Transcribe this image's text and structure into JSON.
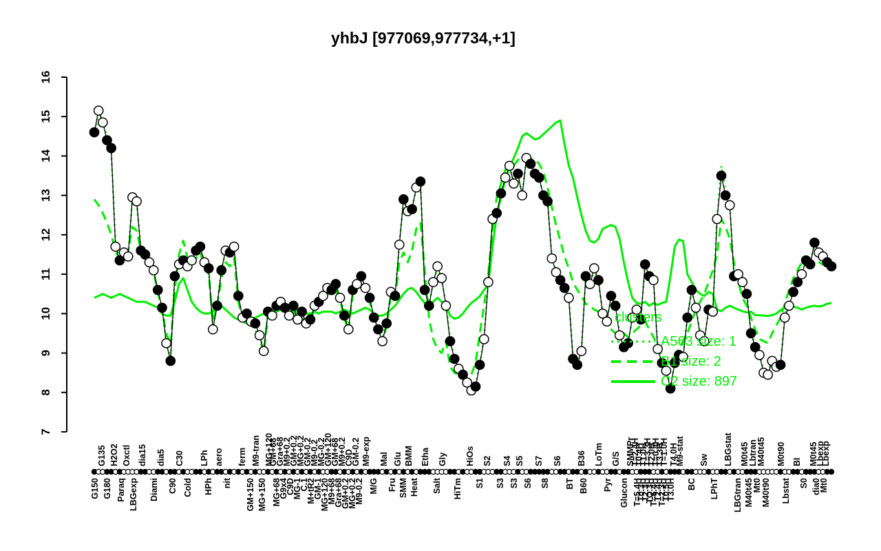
{
  "title": "yhbJ [977069,977734,+1]",
  "colors": {
    "series_green": "#00EE00",
    "series_black": "#000000",
    "background": "#FFFFFF"
  },
  "legend": {
    "title": "clusters",
    "entries": [
      {
        "label": "A563 size: 1",
        "style": "dotted"
      },
      {
        "label": "B1 size: 2",
        "style": "dashed"
      },
      {
        "label": "C2 size: 897",
        "style": "solid"
      }
    ]
  },
  "axis": {
    "y_ticks": [
      7,
      8,
      9,
      10,
      11,
      12,
      13,
      14,
      15,
      16
    ],
    "y_range": [
      7,
      16
    ]
  },
  "chart_data": {
    "type": "line",
    "title": "yhbJ [977069,977734,+1]",
    "ylabel": "",
    "xlabel": "",
    "ylim": [
      7,
      16
    ],
    "grid": false,
    "legend_position": "right-middle",
    "series": [
      {
        "name": "yhbJ",
        "color": "#000000",
        "style": "solid-points",
        "markers": "1001101000011001101101001101011010101010010101010101010011010101011101010101011100001101001100011000100111110011011010010011011001110010111011000100110100111000001001101110011001110110010",
        "values": [
          14.6,
          15.15,
          14.85,
          14.4,
          14.2,
          11.7,
          11.35,
          11.55,
          11.45,
          12.95,
          12.85,
          11.6,
          11.5,
          11.3,
          11.1,
          10.6,
          10.15,
          9.25,
          8.8,
          10.95,
          11.25,
          11.35,
          11.2,
          11.35,
          11.6,
          11.7,
          11.3,
          11.15,
          9.6,
          10.2,
          11.1,
          11.6,
          11.55,
          11.7,
          10.45,
          9.9,
          10.0,
          9.8,
          9.75,
          9.45,
          9.05,
          10.05,
          9.95,
          10.2,
          10.3,
          10.15,
          9.95,
          10.2,
          9.85,
          10.05,
          9.75,
          9.85,
          10.2,
          10.3,
          10.45,
          10.65,
          10.6,
          10.75,
          10.4,
          9.95,
          9.6,
          10.6,
          10.75,
          10.95,
          10.65,
          10.4,
          9.9,
          9.6,
          9.3,
          9.75,
          10.55,
          10.45,
          11.75,
          12.9,
          12.6,
          12.65,
          13.2,
          13.35,
          10.6,
          10.2,
          10.8,
          11.2,
          10.9,
          10.2,
          9.3,
          8.85,
          8.6,
          8.45,
          8.25,
          8.05,
          8.15,
          8.7,
          9.35,
          10.8,
          12.4,
          12.55,
          13.05,
          13.45,
          13.75,
          13.3,
          13.55,
          13.0,
          13.95,
          13.8,
          13.55,
          13.45,
          13.0,
          12.85,
          11.4,
          11.05,
          10.85,
          10.65,
          10.4,
          8.85,
          8.7,
          9.05,
          10.95,
          10.75,
          11.15,
          10.85,
          10.0,
          9.8,
          10.45,
          10.2,
          9.45,
          9.15,
          9.25,
          9.9,
          10.1,
          9.85,
          11.25,
          10.95,
          10.85,
          9.1,
          8.75,
          8.55,
          8.1,
          8.75,
          8.95,
          8.9,
          9.9,
          10.6,
          10.15,
          9.45,
          9.3,
          10.1,
          10.05,
          12.4,
          13.5,
          13.0,
          12.75,
          10.95,
          11.0,
          10.8,
          10.5,
          9.5,
          9.15,
          8.95,
          8.5,
          8.45,
          8.8,
          8.65,
          8.7,
          9.9,
          10.2,
          10.55,
          10.8,
          11.0,
          11.35,
          11.25,
          11.8,
          11.55,
          11.45,
          11.3,
          11.2
        ]
      },
      {
        "name": "A563",
        "color": "#00EE00",
        "style": "dotted",
        "values": [
          14.5,
          15.1,
          14.9,
          14.5,
          14.1,
          11.8,
          11.4,
          11.6,
          11.5,
          12.9,
          12.8,
          11.65,
          11.45,
          11.25,
          11.05,
          10.5,
          10.1,
          9.3,
          8.9,
          11.0,
          11.3,
          11.3,
          11.25,
          11.4,
          11.65,
          11.6,
          11.35,
          11.1,
          9.7,
          10.25,
          11.15,
          11.55,
          11.5,
          11.65,
          10.4,
          9.95,
          10.05,
          9.85,
          9.7,
          9.4,
          9.1,
          10.1,
          10.0,
          10.25,
          10.25,
          10.1,
          10.0,
          10.15,
          9.9,
          10.0,
          9.8,
          9.9,
          10.15,
          10.25,
          10.4,
          10.6,
          10.65,
          10.7,
          10.45,
          10.0,
          9.65,
          10.55,
          10.7,
          10.9,
          10.7,
          10.35,
          9.95,
          9.65,
          9.35,
          9.8,
          10.5,
          10.4,
          11.8,
          12.85,
          12.65,
          12.7,
          13.15,
          13.3,
          10.65,
          10.25,
          10.75,
          11.15,
          10.85,
          10.25,
          9.35,
          8.9,
          8.65,
          8.5,
          8.3,
          8.1,
          8.2,
          8.75,
          9.4,
          10.85,
          12.35,
          12.5,
          13.0,
          13.4,
          13.7,
          13.35,
          13.5,
          13.05,
          13.9,
          13.75,
          13.5,
          13.4,
          13.05,
          12.8,
          11.45,
          11.1,
          10.9,
          10.7,
          10.45,
          8.9,
          8.75,
          9.1,
          10.9,
          10.8,
          11.1,
          10.8,
          10.05,
          9.85,
          10.4,
          10.25,
          9.5,
          9.2,
          9.3,
          9.85,
          10.05,
          9.9,
          11.2,
          11.0,
          10.8,
          9.15,
          8.8,
          8.6,
          8.15,
          8.8,
          9.0,
          8.95,
          9.95,
          10.55,
          10.2,
          9.5,
          9.35,
          10.05,
          10.1,
          12.45,
          13.75,
          13.1,
          12.8,
          11.0,
          10.95,
          10.85,
          10.55,
          9.55,
          9.2,
          9.0,
          8.55,
          8.5,
          8.85,
          8.7,
          8.75,
          9.95,
          10.25,
          10.6,
          10.85,
          11.05,
          11.3,
          11.3,
          11.75,
          11.6,
          11.5,
          11.35,
          11.25
        ]
      },
      {
        "name": "B1",
        "color": "#00EE00",
        "style": "dashed",
        "values": [
          12.9,
          12.75,
          12.55,
          12.3,
          12.0,
          11.6,
          11.35,
          11.5,
          11.6,
          12.2,
          12.1,
          11.6,
          11.5,
          11.3,
          11.05,
          10.55,
          10.1,
          9.5,
          9.2,
          10.6,
          11.5,
          11.85,
          11.4,
          11.25,
          11.4,
          11.55,
          11.2,
          11.0,
          9.8,
          10.2,
          10.9,
          11.3,
          11.2,
          11.4,
          10.3,
          9.85,
          9.95,
          9.7,
          9.6,
          9.35,
          9.0,
          9.95,
          9.9,
          10.1,
          10.2,
          10.1,
          9.9,
          10.1,
          9.8,
          10.0,
          9.7,
          9.8,
          10.1,
          10.2,
          10.35,
          10.5,
          10.5,
          10.6,
          10.35,
          9.9,
          9.55,
          10.5,
          10.65,
          10.85,
          10.55,
          10.3,
          9.85,
          9.55,
          9.25,
          9.7,
          10.45,
          10.35,
          11.3,
          11.55,
          11.3,
          11.6,
          12.15,
          12.3,
          11.1,
          9.9,
          9.35,
          9.1,
          9.0,
          9.3,
          8.65,
          8.5,
          8.45,
          8.4,
          8.3,
          8.45,
          8.75,
          9.5,
          10.2,
          11.0,
          12.15,
          12.95,
          13.3,
          13.65,
          13.7,
          13.75,
          13.9,
          13.95,
          13.9,
          13.95,
          13.9,
          13.8,
          13.6,
          13.2,
          12.7,
          12.25,
          11.85,
          11.45,
          11.15,
          10.8,
          10.6,
          10.45,
          10.25,
          10.2,
          10.1,
          10.05,
          9.9,
          9.7,
          9.6,
          9.5,
          9.45,
          9.5,
          9.4,
          9.5,
          9.6,
          9.7,
          9.8,
          9.6,
          9.4,
          9.2,
          8.9,
          8.75,
          8.8,
          8.9,
          9.1,
          9.3,
          9.5,
          9.8,
          10.1,
          10.3,
          10.5,
          10.8,
          11.1,
          11.5,
          12.4,
          12.2,
          11.9,
          11.3,
          10.8,
          10.4,
          10.2,
          9.9,
          9.6,
          9.35,
          9.3,
          9.25,
          9.5,
          9.7,
          9.9,
          10.25,
          10.6,
          10.9,
          11.1,
          11.3,
          11.35,
          11.3,
          11.25,
          11.3,
          11.25,
          11.2,
          11.15
        ]
      },
      {
        "name": "C2",
        "color": "#00EE00",
        "style": "solid",
        "values": [
          10.4,
          10.45,
          10.5,
          10.45,
          10.4,
          10.45,
          10.5,
          10.45,
          10.4,
          10.35,
          10.3,
          10.3,
          10.3,
          10.25,
          10.2,
          10.15,
          10.0,
          9.95,
          9.95,
          10.3,
          10.75,
          10.9,
          10.6,
          10.3,
          10.15,
          10.05,
          10.0,
          10.0,
          10.05,
          10.15,
          10.2,
          10.1,
          10.0,
          9.9,
          9.85,
          9.8,
          9.75,
          9.85,
          9.9,
          9.95,
          10.0,
          10.0,
          10.05,
          10.05,
          10.1,
          10.05,
          10.0,
          10.05,
          10.1,
          10.05,
          10.0,
          10.0,
          10.05,
          10.0,
          10.05,
          10.05,
          10.05,
          10.0,
          10.05,
          10.1,
          10.05,
          10.0,
          10.05,
          10.1,
          10.15,
          10.1,
          10.0,
          9.95,
          9.95,
          10.0,
          10.1,
          10.2,
          10.35,
          10.5,
          10.62,
          10.65,
          10.55,
          10.4,
          10.27,
          10.2,
          10.3,
          10.4,
          10.3,
          10.22,
          9.95,
          9.87,
          9.9,
          10.0,
          10.15,
          10.27,
          10.35,
          10.44,
          10.6,
          10.74,
          11.7,
          12.5,
          12.95,
          13.4,
          13.7,
          13.95,
          14.2,
          14.5,
          14.58,
          14.5,
          14.42,
          14.45,
          14.55,
          14.65,
          14.75,
          14.85,
          14.9,
          14.3,
          13.75,
          13.45,
          12.95,
          12.5,
          12.1,
          11.85,
          11.8,
          11.9,
          12.15,
          12.2,
          12.25,
          12.2,
          11.9,
          11.3,
          10.8,
          10.4,
          10.27,
          10.25,
          10.3,
          10.2,
          10.27,
          10.22,
          10.27,
          10.3,
          10.95,
          11.7,
          11.88,
          11.84,
          11.0,
          10.8,
          10.6,
          10.5,
          10.45,
          10.55,
          10.5,
          10.1,
          10.06,
          10.15,
          10.2,
          10.15,
          10.1,
          10.06,
          10.03,
          10.05,
          9.96,
          9.96,
          9.95,
          9.94,
          9.96,
          10.0,
          10.09,
          10.15,
          10.22,
          10.18,
          10.15,
          10.1,
          10.15,
          10.18,
          10.2,
          10.18,
          10.2,
          10.25,
          10.27
        ]
      }
    ],
    "condition_labels": [
      [
        138,
        "b",
        "G150"
      ],
      [
        148,
        "t",
        "G135"
      ],
      [
        156,
        "b",
        "G180"
      ],
      [
        166,
        "t",
        "H2O2"
      ],
      [
        176,
        "b",
        "Paraq"
      ],
      [
        184,
        "t",
        "Oxctl"
      ],
      [
        194,
        "b",
        "LBGexp"
      ],
      [
        207,
        "t",
        "dia15"
      ],
      [
        224,
        "b",
        "Diami"
      ],
      [
        234,
        "t",
        "dia5"
      ],
      [
        251,
        "b",
        "C90"
      ],
      [
        261,
        "t",
        "C30"
      ],
      [
        273,
        "b",
        "Cold"
      ],
      [
        297,
        "t",
        "LPh"
      ],
      [
        303,
        "b",
        "HPh"
      ],
      [
        318,
        "t",
        "aero"
      ],
      [
        330,
        "b",
        "nit"
      ],
      [
        352,
        "t",
        "ferm"
      ],
      [
        364,
        "b",
        "GM+150"
      ],
      [
        372,
        "t",
        "M9-tran"
      ],
      [
        381,
        "b",
        "MG+150"
      ],
      [
        391,
        "t",
        "MG+120"
      ],
      [
        397,
        "t",
        "GM+68"
      ],
      [
        402,
        "b",
        "MG+68"
      ],
      [
        407,
        "t",
        "Gra+68"
      ],
      [
        412,
        "b",
        "G9x4"
      ],
      [
        417,
        "t",
        "M9+0.2"
      ],
      [
        422,
        "b",
        "C9D"
      ],
      [
        427,
        "t",
        "GM+0.2"
      ],
      [
        432,
        "b",
        "MG-1"
      ],
      [
        437,
        "t",
        "MG+0.2"
      ],
      [
        442,
        "b",
        "C.1"
      ],
      [
        447,
        "t",
        "GM-0.2"
      ],
      [
        452,
        "b",
        "M+tR2"
      ],
      [
        457,
        "t",
        "M9-0.2"
      ],
      [
        462,
        "b",
        "GM-1"
      ],
      [
        467,
        "t",
        "MG-0.2"
      ],
      [
        472,
        "b",
        "MG+120"
      ],
      [
        477,
        "t",
        "GM+120"
      ],
      [
        482,
        "b",
        "M9+68"
      ],
      [
        487,
        "t",
        "GM+68"
      ],
      [
        492,
        "b",
        "Gra+68"
      ],
      [
        497,
        "t",
        "M9+0.2"
      ],
      [
        502,
        "b",
        "GM+0.2"
      ],
      [
        507,
        "t",
        "C9D"
      ],
      [
        512,
        "b",
        "MG+0.2"
      ],
      [
        517,
        "t",
        "GM-0.2"
      ],
      [
        522,
        "b",
        "M9-0.2"
      ],
      [
        532,
        "t",
        "M9-exp"
      ],
      [
        543,
        "b",
        "M/G"
      ],
      [
        558,
        "t",
        "Mal"
      ],
      [
        570,
        "b",
        "Fru"
      ],
      [
        578,
        "t",
        "Glu"
      ],
      [
        586,
        "b",
        "SMM"
      ],
      [
        594,
        "t",
        "BMM"
      ],
      [
        602,
        "b",
        "Heat"
      ],
      [
        618,
        "t",
        "Etha"
      ],
      [
        635,
        "b",
        "Salt"
      ],
      [
        643,
        "t",
        "Gly"
      ],
      [
        665,
        "b",
        "HiTm"
      ],
      [
        683,
        "t",
        "HiOs"
      ],
      [
        697,
        "b",
        "S1"
      ],
      [
        708,
        "t",
        "S2"
      ],
      [
        727,
        "b",
        "S3"
      ],
      [
        737,
        "t",
        "S4"
      ],
      [
        747,
        "b",
        "S3"
      ],
      [
        755,
        "t",
        "S5"
      ],
      [
        767,
        "b",
        "S6"
      ],
      [
        783,
        "t",
        "S7"
      ],
      [
        792,
        "b",
        "S8"
      ],
      [
        810,
        "t",
        "S6"
      ],
      [
        828,
        "b",
        "BT"
      ],
      [
        845,
        "t",
        "B36"
      ],
      [
        848,
        "b",
        "B60"
      ],
      [
        870,
        "t",
        "LoTm"
      ],
      [
        883,
        "b",
        "Pyr"
      ],
      [
        895,
        "t",
        "G/S"
      ],
      [
        907,
        "b",
        "Glucon"
      ],
      [
        916,
        "t",
        "SMMPr"
      ],
      [
        923,
        "t",
        "T=2.4H"
      ],
      [
        926,
        "b",
        "T=5.4H"
      ],
      [
        929,
        "t",
        "T0.4H"
      ],
      [
        932,
        "b",
        "T0.3H"
      ],
      [
        935,
        "t",
        "T1.0H"
      ],
      [
        938,
        "b",
        "T2.3H"
      ],
      [
        941,
        "t",
        "T=3.3H"
      ],
      [
        944,
        "b",
        "TQ.3H"
      ],
      [
        947,
        "t",
        "T2.0H"
      ],
      [
        950,
        "b",
        "T=6.4H"
      ],
      [
        953,
        "t",
        "T=0.4H"
      ],
      [
        956,
        "b",
        "T2.4H"
      ],
      [
        959,
        "t",
        "T3.3H"
      ],
      [
        962,
        "b",
        "T=2.3H"
      ],
      [
        965,
        "t",
        "T=1.0H"
      ],
      [
        968,
        "b",
        "T0.5H"
      ],
      [
        975,
        "b",
        "T3.0H"
      ],
      [
        979,
        "t",
        "T4.0H"
      ],
      [
        988,
        "t",
        "M9-stat"
      ],
      [
        1005,
        "b",
        "BC"
      ],
      [
        1023,
        "t",
        "Sw"
      ],
      [
        1038,
        "b",
        "LPhT"
      ],
      [
        1058,
        "t",
        "LBGstat"
      ],
      [
        1072,
        "b",
        "LBGtran"
      ],
      [
        1082,
        "t",
        "M0t45"
      ],
      [
        1088,
        "b",
        "M40t45"
      ],
      [
        1094,
        "t",
        "Lbtran"
      ],
      [
        1100,
        "b",
        "Mt0"
      ],
      [
        1106,
        "t",
        "M40t45"
      ],
      [
        1113,
        "b",
        "M40t90"
      ],
      [
        1135,
        "t",
        "M0t90"
      ],
      [
        1142,
        "b",
        "Lbstat"
      ],
      [
        1158,
        "t",
        "BI"
      ],
      [
        1168,
        "b",
        "S0"
      ],
      [
        1182,
        "t",
        "M0t45"
      ],
      [
        1186,
        "b",
        "dia0"
      ],
      [
        1192,
        "t",
        "Lbexp"
      ],
      [
        1197,
        "b",
        "Mt0"
      ],
      [
        1200,
        "t",
        "Lbexp"
      ]
    ]
  }
}
